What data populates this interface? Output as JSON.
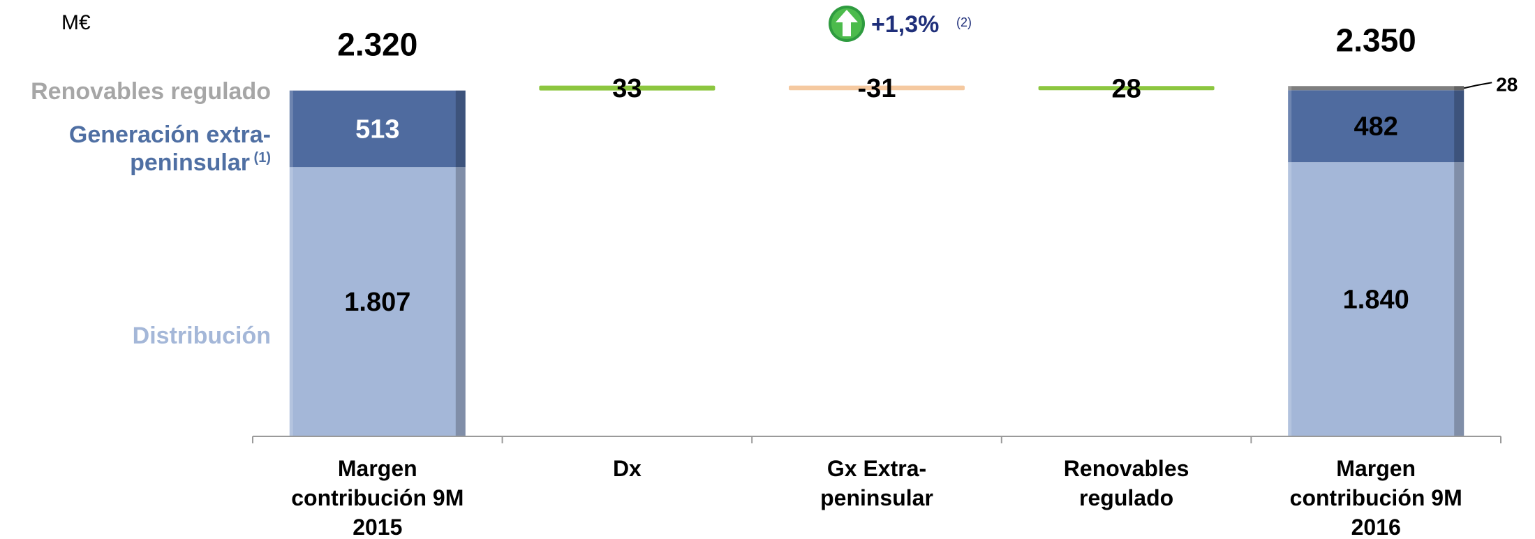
{
  "unit": "M€",
  "growth": {
    "value": "+1,3%",
    "note": "(2)",
    "arrow_icon": "up-arrow-icon"
  },
  "chart_data": {
    "type": "bar",
    "subtype": "waterfall",
    "unit": "M€",
    "categories": [
      {
        "lines": [
          "Margen",
          "contribución 9M",
          "2015"
        ]
      },
      {
        "lines": [
          "Dx"
        ]
      },
      {
        "lines": [
          "Gx Extra-",
          "peninsular"
        ]
      },
      {
        "lines": [
          "Renovables",
          "regulado"
        ]
      },
      {
        "lines": [
          "Margen",
          "contribución 9M",
          "2016"
        ]
      }
    ],
    "totals": [
      {
        "category_index": 0,
        "total_label": "2.320",
        "segments": [
          {
            "series": "Distribución",
            "value": 1807,
            "label": "1.807"
          },
          {
            "series": "Generación extra-peninsular",
            "value": 513,
            "label": "513"
          },
          {
            "series": "Renovables regulado",
            "value": 0,
            "label": ""
          }
        ]
      },
      {
        "category_index": 4,
        "total_label": "2.350",
        "segments": [
          {
            "series": "Distribución",
            "value": 1840,
            "label": "1.840"
          },
          {
            "series": "Generación extra-peninsular",
            "value": 482,
            "label": "482"
          },
          {
            "series": "Renovables regulado",
            "value": 28,
            "label": "28"
          }
        ]
      }
    ],
    "deltas": [
      {
        "category_index": 1,
        "value": 33,
        "label": "33",
        "color": "#8cc63f"
      },
      {
        "category_index": 2,
        "value": -31,
        "label": "-31",
        "color": "#f5c9a0"
      },
      {
        "category_index": 3,
        "value": 28,
        "label": "28",
        "color": "#8cc63f"
      }
    ],
    "legend": [
      {
        "lines": [
          "Renovables regulado"
        ],
        "color": "#a6a6a6"
      },
      {
        "lines": [
          "Generación extra-",
          "peninsular"
        ],
        "superscript": "(1)",
        "color": "#4f6fa3"
      },
      {
        "lines": [
          "Distribución"
        ],
        "color": "#a4b7d8"
      }
    ],
    "series_colors": {
      "Distribución": "#a4b7d8",
      "Generación extra-peninsular": "#4f6b9f",
      "Renovables regulado": "#7f7f7f"
    },
    "ylim": [
      0,
      2350
    ],
    "grid": false
  }
}
